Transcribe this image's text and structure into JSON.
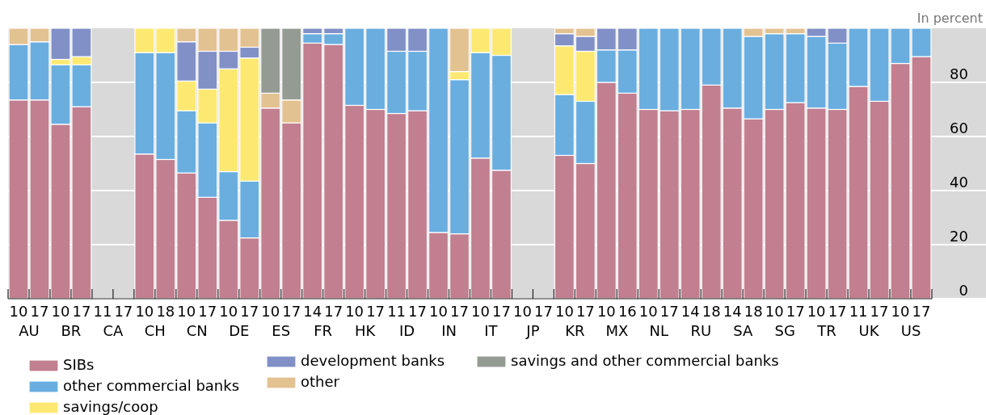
{
  "chart_data": {
    "type": "bar",
    "stacked": true,
    "ylabel": "In percent",
    "categories": [
      "10",
      "17",
      "10",
      "17",
      "11",
      "17",
      "10",
      "18",
      "10",
      "17",
      "10",
      "17",
      "10",
      "17",
      "14",
      "17",
      "10",
      "17",
      "11",
      "17",
      "10",
      "17",
      "10",
      "17",
      "10",
      "17",
      "10",
      "17",
      "10",
      "16",
      "10",
      "17",
      "14",
      "18",
      "14",
      "18",
      "10",
      "17",
      "10",
      "17",
      "11",
      "17",
      "10",
      "17"
    ],
    "annotations": [
      "AU",
      "BR",
      "CA",
      "CH",
      "CN",
      "DE",
      "ES",
      "FR",
      "HK",
      "ID",
      "IN",
      "IT",
      "JP",
      "KR",
      "MX",
      "NL",
      "RU",
      "SA",
      "SG",
      "TR",
      "UK",
      "US"
    ],
    "series": [
      {
        "name": "SIBs",
        "color": "#c17f8f",
        "values": [
          73.5,
          73.5,
          64.5,
          71,
          null,
          null,
          53.5,
          51.5,
          46.5,
          37.5,
          29,
          22.5,
          70.5,
          65,
          94.5,
          94,
          71.5,
          70,
          68.5,
          69.5,
          24.5,
          24,
          52,
          47.5,
          null,
          null,
          53,
          50,
          80,
          76,
          70,
          69.5,
          70,
          79,
          70.5,
          66.5,
          70,
          72.5,
          70.5,
          70,
          78.5,
          73,
          87,
          89.5
        ]
      },
      {
        "name": "other commercial banks",
        "color": "#6aaee0",
        "values": [
          20.5,
          21.5,
          22,
          15.5,
          null,
          null,
          37.5,
          39.5,
          23,
          27.5,
          18,
          21,
          null,
          null,
          3.5,
          4,
          28.5,
          30,
          23,
          22,
          75.5,
          57,
          39,
          42.5,
          null,
          null,
          22.5,
          23,
          12,
          16,
          30,
          30.5,
          30,
          21,
          29.5,
          30.5,
          28,
          25.5,
          26.5,
          24.5,
          21.5,
          27,
          13,
          10.5
        ]
      },
      {
        "name": "savings/coop",
        "color": "#fde971",
        "values": [
          null,
          null,
          2,
          3,
          null,
          null,
          9,
          9,
          11,
          12.5,
          38,
          45.5,
          null,
          null,
          null,
          null,
          null,
          null,
          null,
          null,
          null,
          3,
          9,
          10,
          null,
          null,
          18,
          18.5,
          null,
          null,
          null,
          null,
          null,
          null,
          null,
          null,
          null,
          null,
          null,
          null,
          null,
          null,
          null,
          null
        ]
      },
      {
        "name": "development banks",
        "color": "#8190c7",
        "values": [
          null,
          null,
          11.5,
          10.5,
          null,
          null,
          null,
          null,
          14.5,
          14,
          6.5,
          4,
          null,
          null,
          2,
          2,
          null,
          null,
          8.5,
          8.5,
          null,
          null,
          null,
          null,
          null,
          null,
          4.5,
          5.5,
          8,
          8,
          null,
          null,
          null,
          null,
          null,
          null,
          null,
          null,
          3,
          5.5,
          null,
          null,
          null,
          null
        ]
      },
      {
        "name": "other",
        "color": "#e3c291",
        "values": [
          6,
          5,
          null,
          null,
          null,
          null,
          null,
          null,
          5,
          8.5,
          8.5,
          7,
          5.5,
          8.5,
          null,
          null,
          null,
          null,
          null,
          null,
          null,
          16,
          null,
          null,
          null,
          null,
          2,
          3,
          null,
          null,
          null,
          null,
          null,
          null,
          null,
          3,
          2,
          2,
          null,
          null,
          null,
          null,
          null,
          null
        ]
      },
      {
        "name": "savings and other commercial banks",
        "color": "#939b92",
        "values": [
          null,
          null,
          null,
          null,
          null,
          null,
          null,
          null,
          null,
          null,
          null,
          null,
          24,
          26.5,
          null,
          null,
          null,
          null,
          null,
          null,
          null,
          null,
          null,
          null,
          null,
          null,
          null,
          null,
          null,
          null,
          null,
          null,
          null,
          null,
          null,
          null,
          null,
          null,
          null,
          null,
          null,
          null,
          null,
          null
        ]
      }
    ],
    "ylim": [
      0,
      100
    ],
    "yticks": [
      0,
      20,
      40,
      60,
      80
    ],
    "grid": "y",
    "legend": "bottom"
  }
}
